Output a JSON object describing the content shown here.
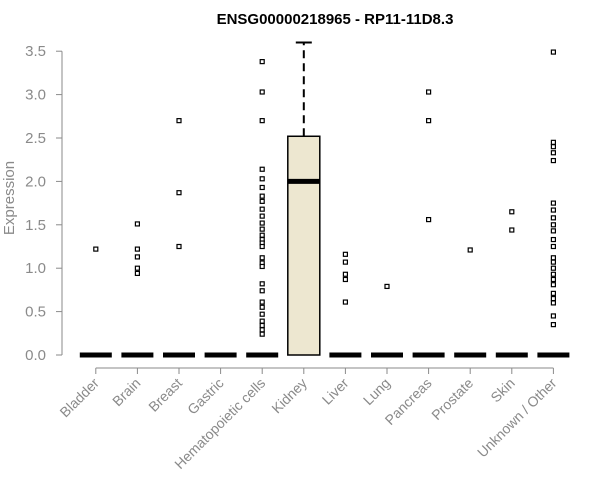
{
  "chart_data": {
    "type": "box",
    "title": "ENSG00000218965 - RP11-11D8.3",
    "xlabel": "",
    "ylabel": "Expression",
    "ylim": [
      0,
      3.5
    ],
    "yticks": [
      "0.0",
      "0.5",
      "1.0",
      "1.5",
      "2.0",
      "2.5",
      "3.0",
      "3.5"
    ],
    "categories": [
      "Bladder",
      "Brain",
      "Breast",
      "Gastric",
      "Hematopoietic cells",
      "Kidney",
      "Liver",
      "Lung",
      "Pancreas",
      "Prostate",
      "Skin",
      "Unknown / Other"
    ],
    "boxes": [
      {
        "category": "Bladder",
        "median": 0,
        "q1": 0,
        "q3": 0,
        "whisker_low": 0,
        "whisker_high": 0,
        "outliers": [
          1.22
        ]
      },
      {
        "category": "Brain",
        "median": 0,
        "q1": 0,
        "q3": 0,
        "whisker_low": 0,
        "whisker_high": 0,
        "outliers": [
          1.51,
          1.22,
          1.13,
          1.0,
          0.94
        ]
      },
      {
        "category": "Breast",
        "median": 0,
        "q1": 0,
        "q3": 0,
        "whisker_low": 0,
        "whisker_high": 0,
        "outliers": [
          2.7,
          1.87,
          1.25
        ]
      },
      {
        "category": "Gastric",
        "median": 0,
        "q1": 0,
        "q3": 0,
        "whisker_low": 0,
        "whisker_high": 0,
        "outliers": []
      },
      {
        "category": "Hematopoietic cells",
        "median": 0,
        "q1": 0,
        "q3": 0,
        "whisker_low": 0,
        "whisker_high": 0,
        "outliers": [
          3.38,
          3.03,
          2.7,
          2.14,
          2.03,
          1.93,
          1.83,
          1.77,
          1.68,
          1.6,
          1.52,
          1.45,
          1.38,
          1.33,
          1.29,
          1.25,
          1.12,
          1.06,
          1.02,
          0.82,
          0.74,
          0.61,
          0.55,
          0.47,
          0.39,
          0.34,
          0.29,
          0.24
        ]
      },
      {
        "category": "Kidney",
        "median": 2.0,
        "q1": 0,
        "q3": 2.52,
        "whisker_low": 0,
        "whisker_high": 3.6,
        "outliers": []
      },
      {
        "category": "Liver",
        "median": 0,
        "q1": 0,
        "q3": 0,
        "whisker_low": 0,
        "whisker_high": 0,
        "outliers": [
          1.16,
          1.07,
          0.93,
          0.87,
          0.61
        ]
      },
      {
        "category": "Lung",
        "median": 0,
        "q1": 0,
        "q3": 0,
        "whisker_low": 0,
        "whisker_high": 0,
        "outliers": [
          0.79
        ]
      },
      {
        "category": "Pancreas",
        "median": 0,
        "q1": 0,
        "q3": 0,
        "whisker_low": 0,
        "whisker_high": 0,
        "outliers": [
          3.03,
          2.7,
          1.56
        ]
      },
      {
        "category": "Prostate",
        "median": 0,
        "q1": 0,
        "q3": 0,
        "whisker_low": 0,
        "whisker_high": 0,
        "outliers": [
          1.21
        ]
      },
      {
        "category": "Skin",
        "median": 0,
        "q1": 0,
        "q3": 0,
        "whisker_low": 0,
        "whisker_high": 0,
        "outliers": [
          1.65,
          1.44
        ]
      },
      {
        "category": "Unknown / Other",
        "median": 0,
        "q1": 0,
        "q3": 0,
        "whisker_low": 0,
        "whisker_high": 0,
        "outliers": [
          3.49,
          2.45,
          2.4,
          2.33,
          2.24,
          1.75,
          1.67,
          1.58,
          1.5,
          1.43,
          1.33,
          1.25,
          1.12,
          1.07,
          1.0,
          0.93,
          0.87,
          0.81,
          0.71,
          0.65,
          0.6,
          0.45,
          0.35
        ]
      }
    ],
    "box_fill": "#ede7d0",
    "grid": false,
    "legend": "none"
  }
}
